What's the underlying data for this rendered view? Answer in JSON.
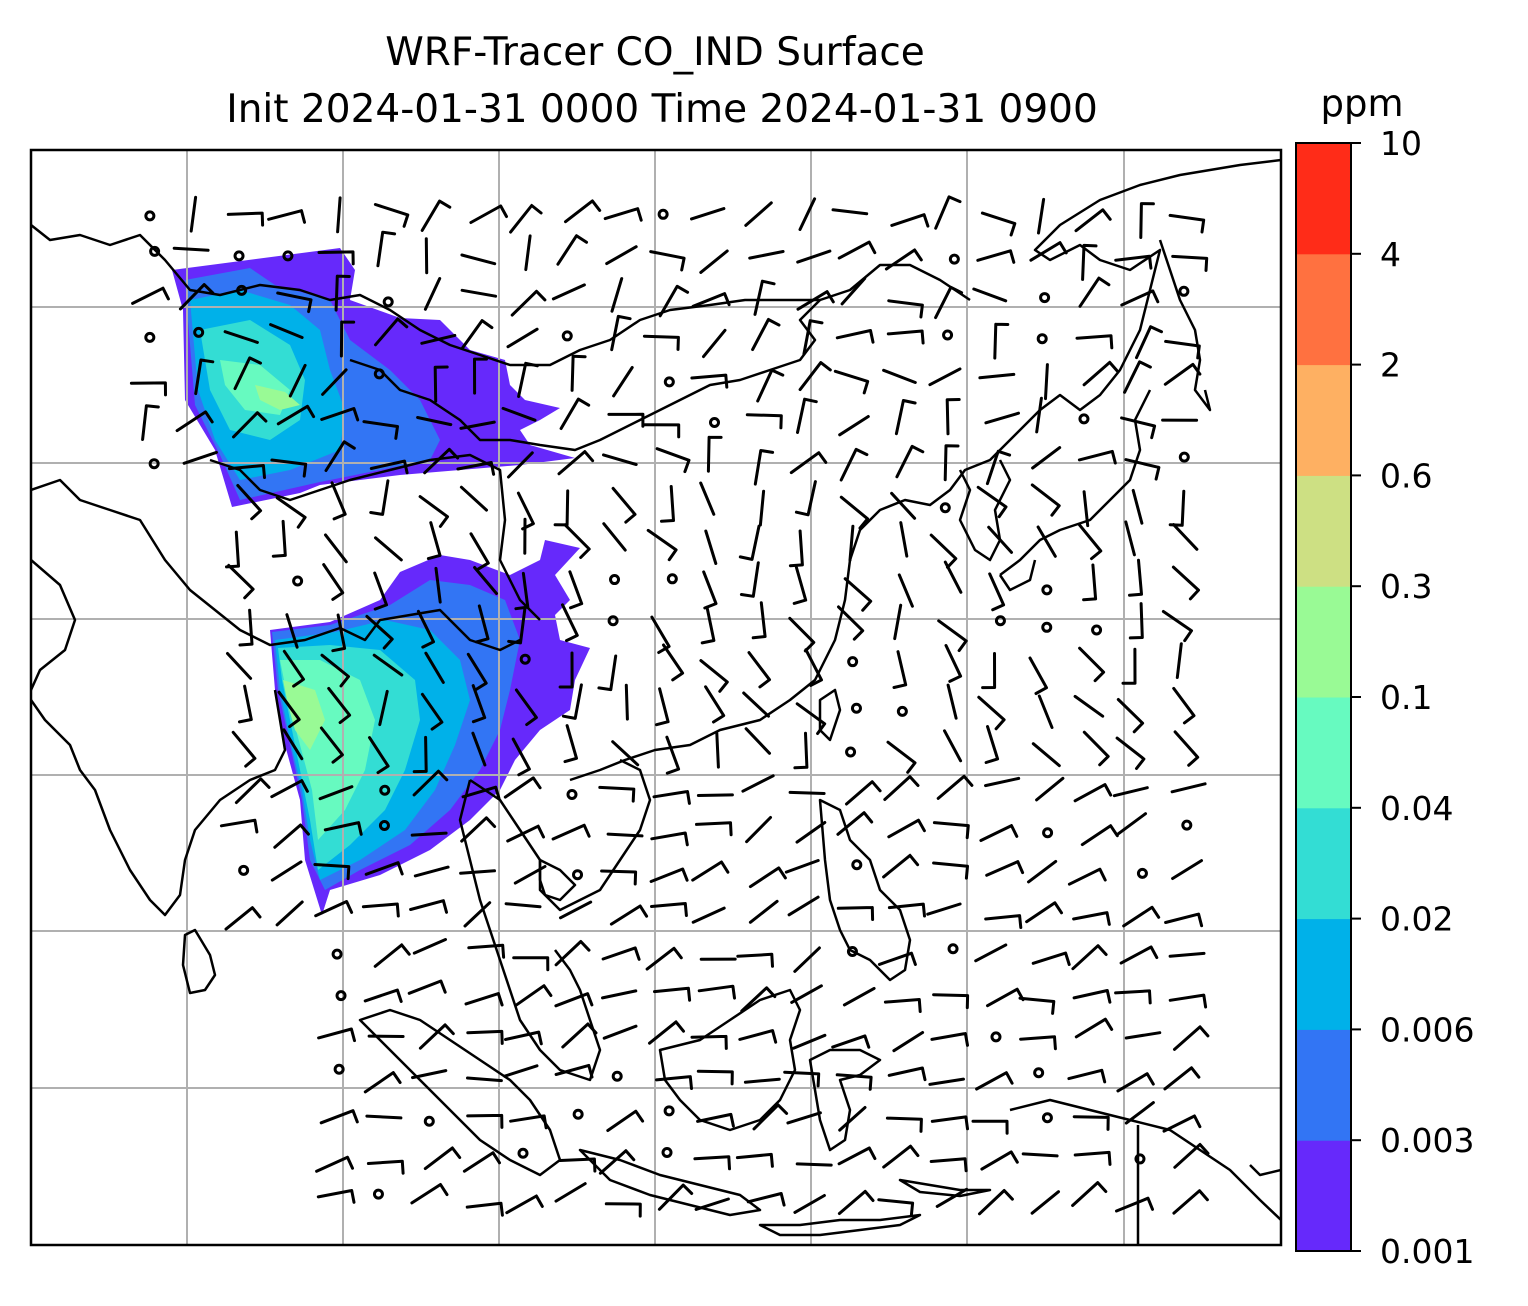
{
  "chart_data": {
    "type": "heatmap",
    "title_line1": "WRF-Tracer CO_IND Surface",
    "title_line2": "Init 2024-01-31 0000 Time 2024-01-31 0900",
    "colorbar": {
      "label": "ppm",
      "levels": [
        "0.001",
        "0.003",
        "0.006",
        "0.02",
        "0.04",
        "0.1",
        "0.3",
        "0.6",
        "2",
        "4",
        "10"
      ],
      "colors": [
        "#6629fb",
        "#3275f4",
        "#00b1e9",
        "#33ddd4",
        "#67fac0",
        "#99fa95",
        "#cde083",
        "#feb062",
        "#ff7140",
        "#ff2c18"
      ]
    },
    "colors": {
      "coastline": "#000000",
      "gridline": "#b0b0b0",
      "wind_barb": "#000000"
    },
    "grid": true
  }
}
